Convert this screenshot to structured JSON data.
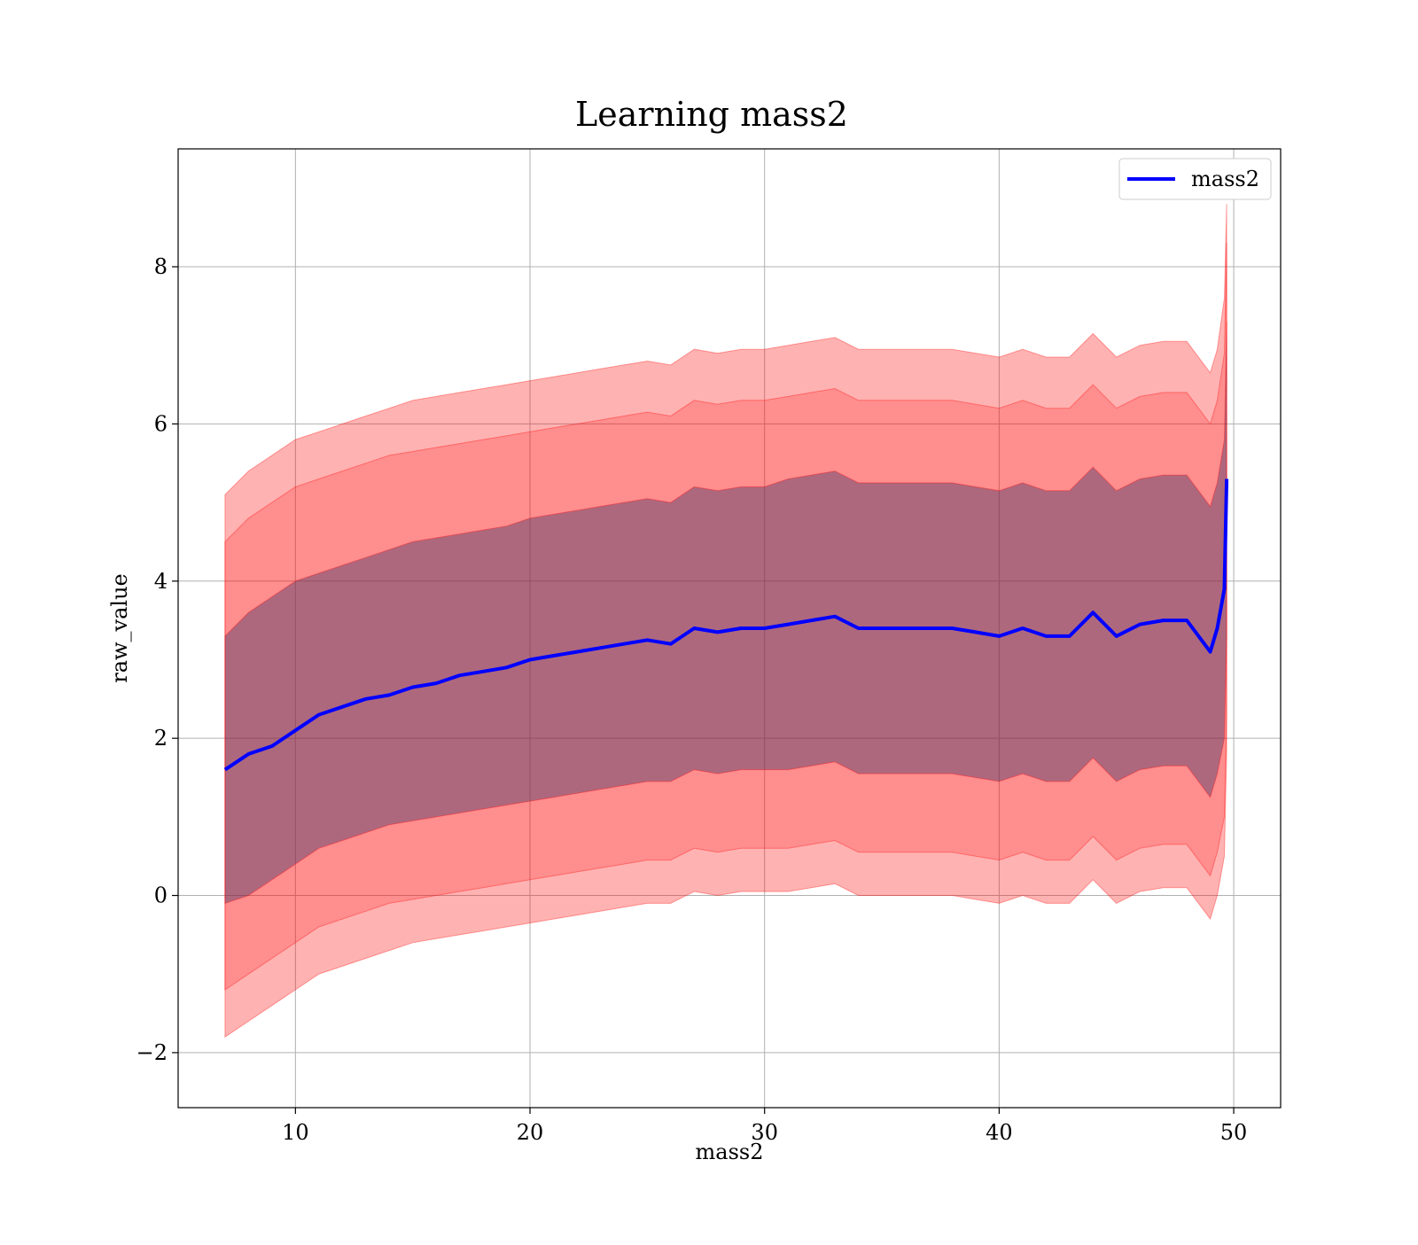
{
  "chart_data": {
    "type": "area",
    "title": "Learning mass2",
    "xlabel": "mass2",
    "ylabel": "raw_value",
    "xlim": [
      5,
      52
    ],
    "ylim": [
      -2.7,
      9.5
    ],
    "xticks": [
      10,
      20,
      30,
      40,
      50
    ],
    "yticks": [
      -2,
      0,
      2,
      4,
      6,
      8
    ],
    "xtick_labels": [
      "10",
      "20",
      "30",
      "40",
      "50"
    ],
    "ytick_labels": [
      "−2",
      "0",
      "2",
      "4",
      "6",
      "8"
    ],
    "grid": true,
    "legend": {
      "position": "top-right",
      "entries": [
        "mass2"
      ]
    },
    "colors": {
      "line": "#0000ff",
      "band": "#ff0000",
      "band_overlay": "#4b3a6b"
    },
    "series": [
      {
        "name": "mass2",
        "x": [
          7,
          8,
          9,
          10,
          11,
          12,
          13,
          14,
          15,
          16,
          17,
          18,
          19,
          20,
          21,
          22,
          23,
          24,
          25,
          26,
          27,
          28,
          29,
          30,
          31,
          32,
          33,
          34,
          35,
          36,
          37,
          38,
          39,
          40,
          41,
          42,
          43,
          44,
          45,
          46,
          47,
          48,
          49,
          49.3,
          49.6,
          49.7
        ],
        "values": [
          1.6,
          1.8,
          1.9,
          2.1,
          2.3,
          2.4,
          2.5,
          2.55,
          2.65,
          2.7,
          2.8,
          2.85,
          2.9,
          3.0,
          3.05,
          3.1,
          3.15,
          3.2,
          3.25,
          3.2,
          3.4,
          3.35,
          3.4,
          3.4,
          3.45,
          3.5,
          3.55,
          3.4,
          3.4,
          3.4,
          3.4,
          3.4,
          3.35,
          3.3,
          3.4,
          3.3,
          3.3,
          3.6,
          3.3,
          3.45,
          3.5,
          3.5,
          3.1,
          3.4,
          3.9,
          5.3
        ]
      }
    ],
    "bands": [
      {
        "x": [
          7,
          8,
          9,
          10,
          11,
          12,
          13,
          14,
          15,
          16,
          17,
          18,
          19,
          20,
          21,
          22,
          23,
          24,
          25,
          26,
          27,
          28,
          29,
          30,
          31,
          32,
          33,
          34,
          35,
          36,
          37,
          38,
          39,
          40,
          41,
          42,
          43,
          44,
          45,
          46,
          47,
          48,
          49,
          49.3,
          49.6,
          49.7
        ],
        "lower": [
          -0.1,
          0.0,
          0.2,
          0.4,
          0.6,
          0.7,
          0.8,
          0.9,
          0.95,
          1.0,
          1.05,
          1.1,
          1.15,
          1.2,
          1.25,
          1.3,
          1.35,
          1.4,
          1.45,
          1.45,
          1.6,
          1.55,
          1.6,
          1.6,
          1.6,
          1.65,
          1.7,
          1.55,
          1.55,
          1.55,
          1.55,
          1.55,
          1.5,
          1.45,
          1.55,
          1.45,
          1.45,
          1.75,
          1.45,
          1.6,
          1.65,
          1.65,
          1.25,
          1.55,
          2.0,
          3.3
        ],
        "upper": [
          3.3,
          3.6,
          3.8,
          4.0,
          4.1,
          4.2,
          4.3,
          4.4,
          4.5,
          4.55,
          4.6,
          4.65,
          4.7,
          4.8,
          4.85,
          4.9,
          4.95,
          5.0,
          5.05,
          5.0,
          5.2,
          5.15,
          5.2,
          5.2,
          5.3,
          5.35,
          5.4,
          5.25,
          5.25,
          5.25,
          5.25,
          5.25,
          5.2,
          5.15,
          5.25,
          5.15,
          5.15,
          5.45,
          5.15,
          5.3,
          5.35,
          5.35,
          4.95,
          5.25,
          5.8,
          7.3
        ]
      },
      {
        "x": [
          7,
          8,
          9,
          10,
          11,
          12,
          13,
          14,
          15,
          16,
          17,
          18,
          19,
          20,
          21,
          22,
          23,
          24,
          25,
          26,
          27,
          28,
          29,
          30,
          31,
          32,
          33,
          34,
          35,
          36,
          37,
          38,
          39,
          40,
          41,
          42,
          43,
          44,
          45,
          46,
          47,
          48,
          49,
          49.3,
          49.6,
          49.7
        ],
        "lower": [
          -1.2,
          -1.0,
          -0.8,
          -0.6,
          -0.4,
          -0.3,
          -0.2,
          -0.1,
          -0.05,
          0.0,
          0.05,
          0.1,
          0.15,
          0.2,
          0.25,
          0.3,
          0.35,
          0.4,
          0.45,
          0.45,
          0.6,
          0.55,
          0.6,
          0.6,
          0.6,
          0.65,
          0.7,
          0.55,
          0.55,
          0.55,
          0.55,
          0.55,
          0.5,
          0.45,
          0.55,
          0.45,
          0.45,
          0.75,
          0.45,
          0.6,
          0.65,
          0.65,
          0.25,
          0.55,
          1.0,
          2.3
        ],
        "upper": [
          4.5,
          4.8,
          5.0,
          5.2,
          5.3,
          5.4,
          5.5,
          5.6,
          5.65,
          5.7,
          5.75,
          5.8,
          5.85,
          5.9,
          5.95,
          6.0,
          6.05,
          6.1,
          6.15,
          6.1,
          6.3,
          6.25,
          6.3,
          6.3,
          6.35,
          6.4,
          6.45,
          6.3,
          6.3,
          6.3,
          6.3,
          6.3,
          6.25,
          6.2,
          6.3,
          6.2,
          6.2,
          6.5,
          6.2,
          6.35,
          6.4,
          6.4,
          6.0,
          6.3,
          6.9,
          8.3
        ]
      },
      {
        "x": [
          7,
          8,
          9,
          10,
          11,
          12,
          13,
          14,
          15,
          16,
          17,
          18,
          19,
          20,
          21,
          22,
          23,
          24,
          25,
          26,
          27,
          28,
          29,
          30,
          31,
          32,
          33,
          34,
          35,
          36,
          37,
          38,
          39,
          40,
          41,
          42,
          43,
          44,
          45,
          46,
          47,
          48,
          49,
          49.3,
          49.6,
          49.7
        ],
        "lower": [
          -1.8,
          -1.6,
          -1.4,
          -1.2,
          -1.0,
          -0.9,
          -0.8,
          -0.7,
          -0.6,
          -0.55,
          -0.5,
          -0.45,
          -0.4,
          -0.35,
          -0.3,
          -0.25,
          -0.2,
          -0.15,
          -0.1,
          -0.1,
          0.05,
          0.0,
          0.05,
          0.05,
          0.05,
          0.1,
          0.15,
          0.0,
          0.0,
          0.0,
          0.0,
          0.0,
          -0.05,
          -0.1,
          0.0,
          -0.1,
          -0.1,
          0.2,
          -0.1,
          0.05,
          0.1,
          0.1,
          -0.3,
          0.0,
          0.5,
          1.8
        ],
        "upper": [
          5.1,
          5.4,
          5.6,
          5.8,
          5.9,
          6.0,
          6.1,
          6.2,
          6.3,
          6.35,
          6.4,
          6.45,
          6.5,
          6.55,
          6.6,
          6.65,
          6.7,
          6.75,
          6.8,
          6.75,
          6.95,
          6.9,
          6.95,
          6.95,
          7.0,
          7.05,
          7.1,
          6.95,
          6.95,
          6.95,
          6.95,
          6.95,
          6.9,
          6.85,
          6.95,
          6.85,
          6.85,
          7.15,
          6.85,
          7.0,
          7.05,
          7.05,
          6.65,
          6.95,
          7.6,
          8.8
        ]
      }
    ]
  }
}
